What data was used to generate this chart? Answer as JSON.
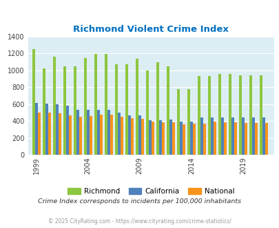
{
  "title": "Richmond Violent Crime Index",
  "years": [
    1999,
    2000,
    2001,
    2002,
    2003,
    2004,
    2005,
    2006,
    2007,
    2008,
    2009,
    2010,
    2011,
    2012,
    2013,
    2014,
    2015,
    2016,
    2017,
    2018,
    2019,
    2020,
    2021
  ],
  "richmond": [
    1250,
    1020,
    1165,
    1045,
    1045,
    1145,
    1195,
    1195,
    1070,
    1070,
    1135,
    1000,
    1095,
    1045,
    775,
    775,
    930,
    930,
    955,
    955,
    940,
    940,
    940
  ],
  "california": [
    618,
    605,
    598,
    580,
    535,
    530,
    535,
    530,
    505,
    470,
    465,
    410,
    415,
    420,
    395,
    395,
    440,
    445,
    445,
    440,
    440,
    440,
    440
  ],
  "national": [
    505,
    505,
    495,
    470,
    455,
    460,
    480,
    475,
    448,
    435,
    430,
    395,
    390,
    387,
    365,
    370,
    370,
    395,
    388,
    383,
    380,
    380,
    380
  ],
  "richmond_color": "#8dc63f",
  "california_color": "#4f81bd",
  "national_color": "#f7941d",
  "background_color": "#dceef3",
  "title_color": "#0070c0",
  "ylim": [
    0,
    1400
  ],
  "yticks": [
    0,
    200,
    400,
    600,
    800,
    1000,
    1200,
    1400
  ],
  "xtick_labels": [
    "1999",
    "2004",
    "2009",
    "2014",
    "2019"
  ],
  "xtick_positions": [
    1999,
    2004,
    2009,
    2014,
    2019
  ],
  "subtitle": "Crime Index corresponds to incidents per 100,000 inhabitants",
  "footer": "© 2025 CityRating.com - https://www.cityrating.com/crime-statistics/",
  "subtitle_color": "#333333",
  "footer_color": "#999999"
}
